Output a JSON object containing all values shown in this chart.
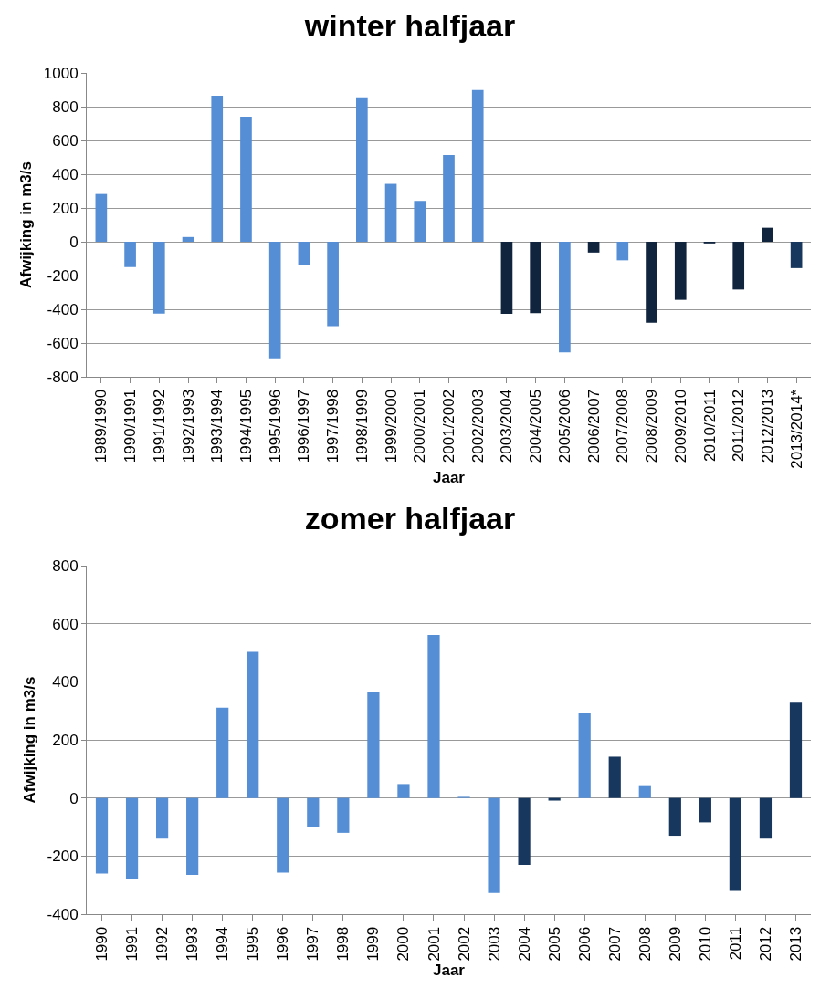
{
  "chart_data": [
    {
      "type": "bar",
      "title": "winter halfjaar",
      "xlabel": "Jaar",
      "ylabel": "Afwijking in m3/s",
      "categories": [
        "1989/1990",
        "1990/1991",
        "1991/1992",
        "1992/1993",
        "1993/1994",
        "1994/1995",
        "1995/1996",
        "1996/1997",
        "1997/1998",
        "1998/1999",
        "1999/2000",
        "2000/2001",
        "2001/2002",
        "2002/2003",
        "2003/2004",
        "2004/2005",
        "2005/2006",
        "2006/2007",
        "2007/2008",
        "2008/2009",
        "2009/2010",
        "2010/2011",
        "2011/2012",
        "2012/2013",
        "2013/2014*"
      ],
      "values": [
        283,
        -150,
        -425,
        28,
        865,
        740,
        -690,
        -140,
        -500,
        855,
        343,
        242,
        514,
        898,
        -427,
        -423,
        -655,
        -64,
        -110,
        -480,
        -344,
        -10,
        -283,
        83,
        -156
      ],
      "colors": [
        "#558ed5",
        "#558ed5",
        "#558ed5",
        "#558ed5",
        "#558ed5",
        "#558ed5",
        "#558ed5",
        "#558ed5",
        "#558ed5",
        "#558ed5",
        "#558ed5",
        "#558ed5",
        "#558ed5",
        "#558ed5",
        "#10243e",
        "#10243e",
        "#558ed5",
        "#10243e",
        "#558ed5",
        "#10243e",
        "#10243e",
        "#10243e",
        "#10243e",
        "#10243e",
        "#17375e"
      ],
      "ylim": [
        -800,
        1000
      ],
      "yticks": [
        -800,
        -600,
        -400,
        -200,
        0,
        200,
        400,
        600,
        800,
        1000
      ],
      "grid": "y"
    },
    {
      "type": "bar",
      "title": "zomer halfjaar",
      "xlabel": "Jaar",
      "ylabel": "Afwijking in m3/s",
      "categories": [
        "1990",
        "1991",
        "1992",
        "1993",
        "1994",
        "1995",
        "1996",
        "1997",
        "1998",
        "1999",
        "2000",
        "2001",
        "2002",
        "2003",
        "2004",
        "2005",
        "2006",
        "2007",
        "2008",
        "2009",
        "2010",
        "2011",
        "2012",
        "2013"
      ],
      "values": [
        -260,
        -280,
        -140,
        -265,
        311,
        503,
        -257,
        -100,
        -120,
        365,
        48,
        561,
        4,
        -327,
        -230,
        -9,
        291,
        142,
        44,
        -130,
        -84,
        -320,
        -140,
        328
      ],
      "colors": [
        "#558ed5",
        "#558ed5",
        "#558ed5",
        "#558ed5",
        "#558ed5",
        "#558ed5",
        "#558ed5",
        "#558ed5",
        "#558ed5",
        "#558ed5",
        "#558ed5",
        "#558ed5",
        "#558ed5",
        "#558ed5",
        "#17375e",
        "#17375e",
        "#558ed5",
        "#17375e",
        "#558ed5",
        "#17375e",
        "#17375e",
        "#17375e",
        "#17375e",
        "#17375e"
      ],
      "ylim": [
        -400,
        800
      ],
      "yticks": [
        -400,
        -200,
        0,
        200,
        400,
        600,
        800
      ],
      "grid": "y"
    }
  ]
}
